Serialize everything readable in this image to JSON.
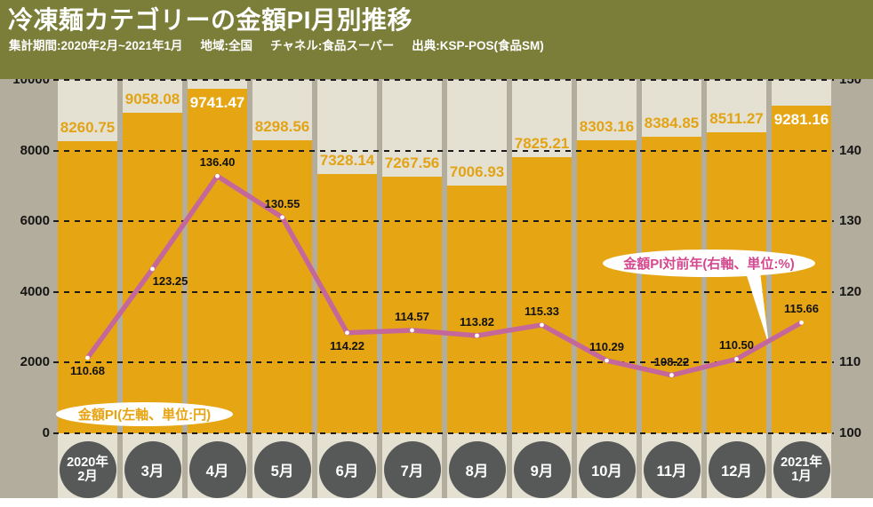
{
  "header": {
    "title": "冷凍麺カテゴリーの金額PI月別推移",
    "subtitle_segments": [
      "集計期間:2020年2月~2021年1月",
      "地域:全国",
      "チャネル:食品スーパー",
      "出典:KSP-POS(食品SM)"
    ]
  },
  "chart_data": {
    "type": "bar+line",
    "title": "冷凍麺カテゴリーの金額PI月別推移",
    "categories": [
      "2020年2月",
      "3月",
      "4月",
      "5月",
      "6月",
      "7月",
      "8月",
      "9月",
      "10月",
      "11月",
      "12月",
      "2021年1月"
    ],
    "category_display": [
      [
        "2020年",
        "2月"
      ],
      [
        "3月"
      ],
      [
        "4月"
      ],
      [
        "5月"
      ],
      [
        "6月"
      ],
      [
        "7月"
      ],
      [
        "8月"
      ],
      [
        "9月"
      ],
      [
        "10月"
      ],
      [
        "11月"
      ],
      [
        "12月"
      ],
      [
        "2021年",
        "1月"
      ]
    ],
    "series": [
      {
        "name": "金額PI(左軸、単位:円)",
        "type": "bar",
        "axis": "left",
        "unit": "円",
        "values": [
          8260.75,
          9058.08,
          9741.47,
          8298.56,
          7328.14,
          7267.56,
          7006.93,
          7825.21,
          8303.16,
          8384.85,
          8511.27,
          9281.16
        ],
        "label_inside": [
          false,
          false,
          true,
          false,
          false,
          false,
          false,
          false,
          false,
          false,
          false,
          true
        ]
      },
      {
        "name": "金額PI対前年(右軸、単位:%)",
        "type": "line",
        "axis": "right",
        "unit": "%",
        "values": [
          110.68,
          123.25,
          136.4,
          130.55,
          114.22,
          114.57,
          113.82,
          115.33,
          110.29,
          108.22,
          110.5,
          115.66
        ],
        "label_pos": [
          "below",
          "below-right",
          "above",
          "above",
          "below",
          "above",
          "above",
          "above",
          "above",
          "above",
          "above",
          "above"
        ]
      }
    ],
    "left_axis": {
      "range": [
        0,
        10000
      ],
      "ticks": [
        0,
        2000,
        4000,
        6000,
        8000,
        10000
      ]
    },
    "right_axis": {
      "range": [
        100,
        150
      ],
      "ticks": [
        100,
        110,
        120,
        130,
        140,
        150
      ]
    },
    "grid": "dashed-horizontal",
    "legend": [
      {
        "text": "金額PI(左軸、単位:円)",
        "series": "bar"
      },
      {
        "text": "金額PI対前年(右軸、単位:%)",
        "series": "line"
      }
    ]
  },
  "colors": {
    "header_bg": "#7b7e39",
    "margin_bg": "#b3ad9d",
    "column_bg": "#e5e1d2",
    "bar": "#e6a613",
    "bar_label": "#e2a315",
    "bar_label_inside": "#ffffff",
    "line": "#c4679a",
    "line_label": "#111111",
    "legend_bar_text": "#e8a30f",
    "legend_line_text": "#d4498e",
    "month_circle": "#575959",
    "grid_line": "#1c1c1c"
  }
}
